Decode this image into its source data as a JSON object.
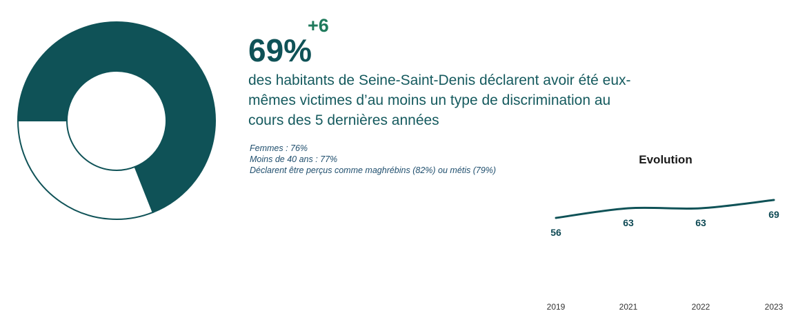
{
  "headline": {
    "value": "69%",
    "delta": "+6",
    "statement": "des habitants de Seine-Saint-Denis déclarent avoir été eux-mêmes victimes d’au moins un type de discrimination au cours des 5 dernières années"
  },
  "notes": [
    "Femmes : 76%",
    "Moins de 40 ans : 77%",
    "Déclarent être perçus comme maghrébins (82%) ou métis (79%)"
  ],
  "colors": {
    "primary": "#0f5257",
    "delta": "#1f7a5c",
    "ring_outline": "#0f5257",
    "background": "#ffffff"
  },
  "chart_data": [
    {
      "type": "pie",
      "style": "donut",
      "slices": [
        {
          "value": 69,
          "color": "#0f5257"
        },
        {
          "value": 31,
          "color": "#ffffff"
        }
      ],
      "start": "9 o'clock, clockwise"
    },
    {
      "type": "line",
      "title": "Evolution",
      "categories": [
        "2019",
        "2021",
        "2022",
        "2023"
      ],
      "series": [
        {
          "values": [
            56,
            63,
            63,
            69
          ],
          "color": "#0f5257"
        }
      ],
      "data_labels": true,
      "smooth": true,
      "grid": false
    }
  ]
}
